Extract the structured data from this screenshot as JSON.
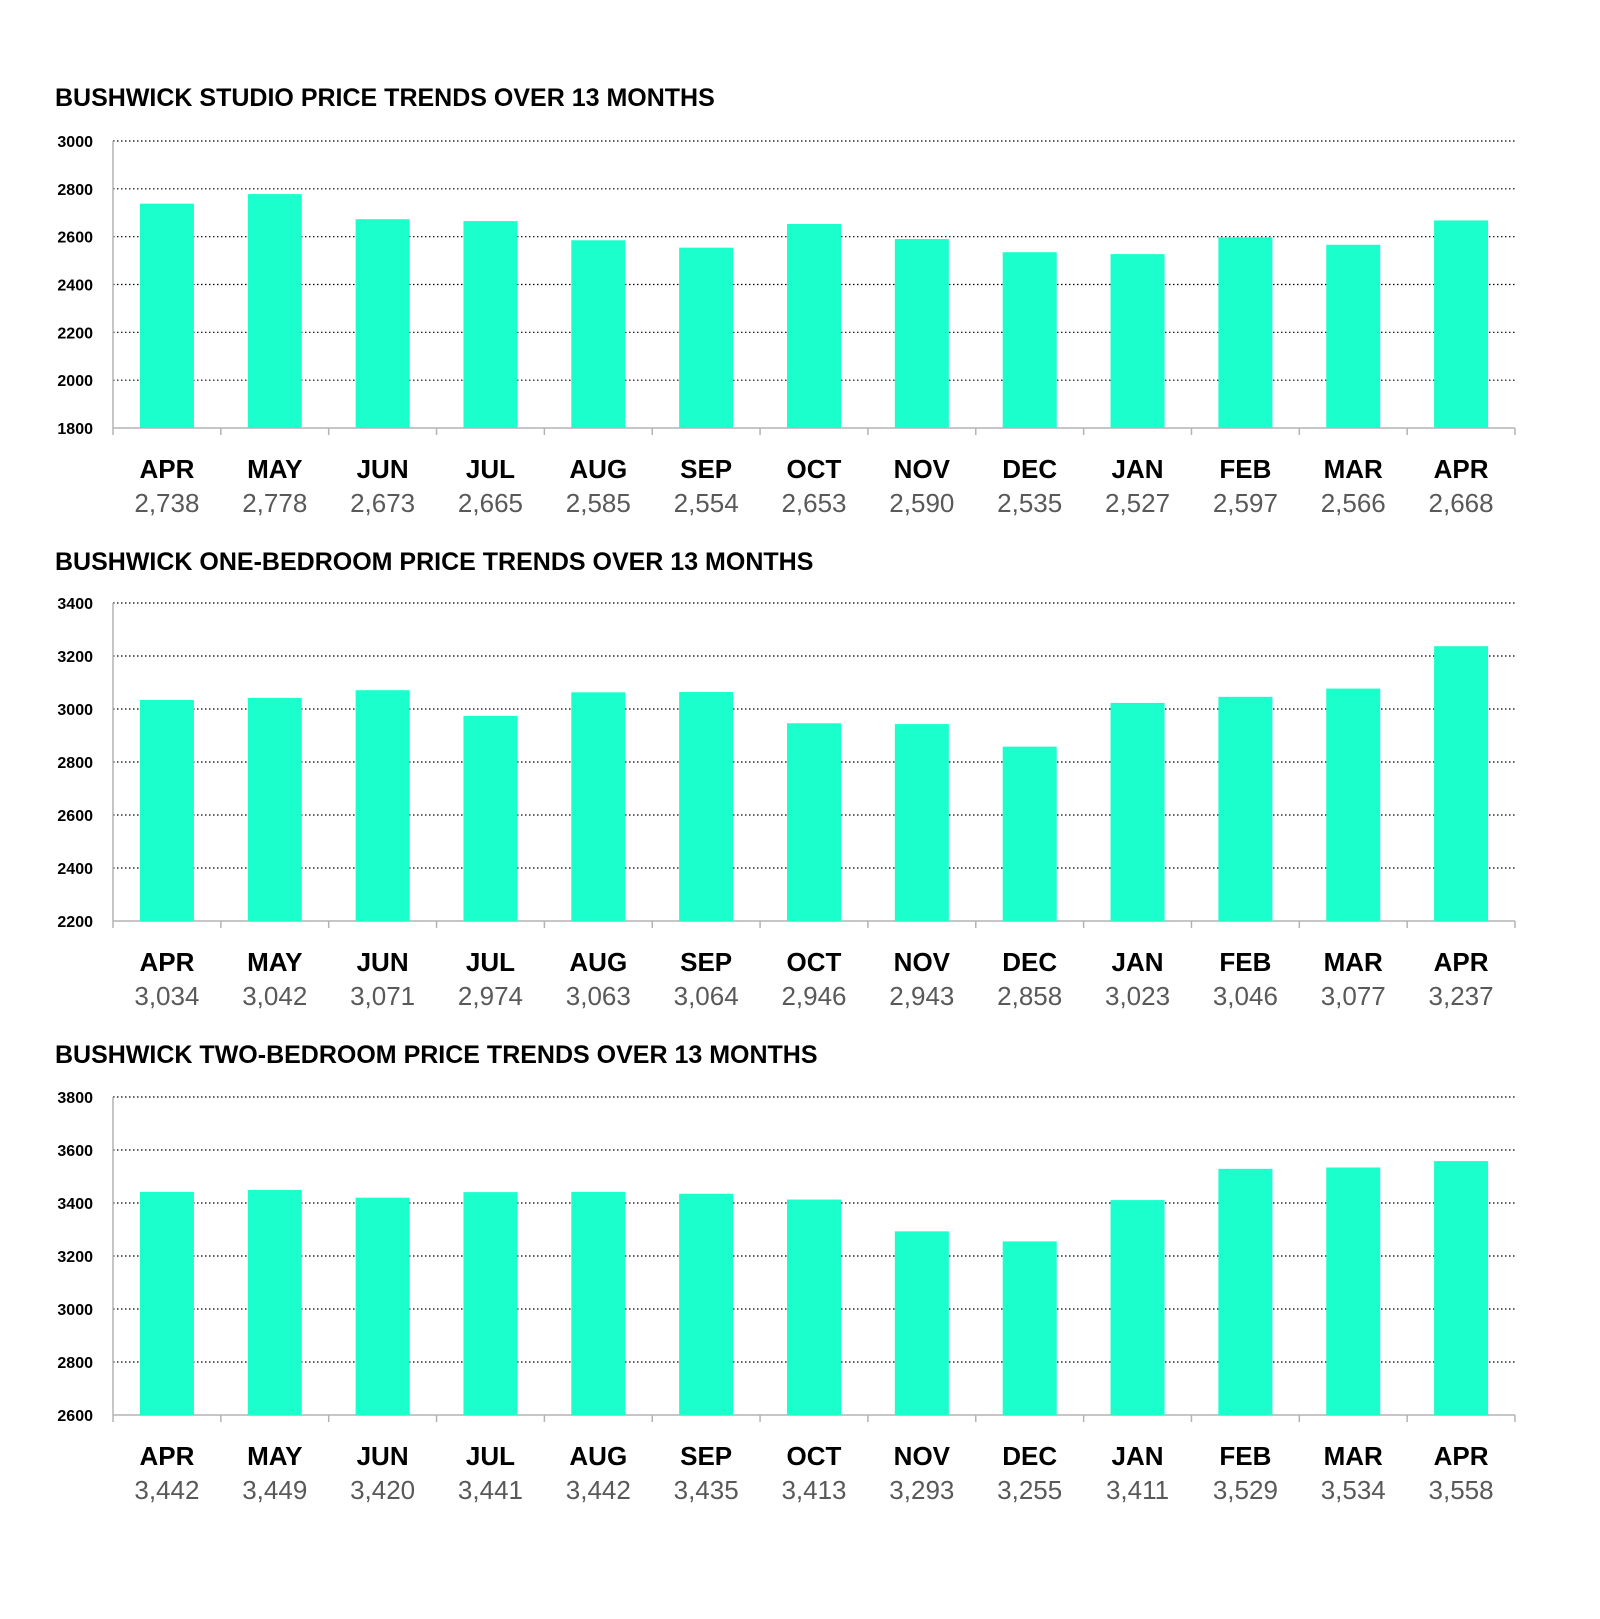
{
  "colors": {
    "bar": "#1affcc",
    "grid": "#000000",
    "axis": "#b3b3b3",
    "value_text": "#595959",
    "label_text": "#000000"
  },
  "chart_data": [
    {
      "type": "bar",
      "title": "BUSHWICK STUDIO PRICE TRENDS OVER 13 MONTHS",
      "categories": [
        "APR",
        "MAY",
        "JUN",
        "JUL",
        "AUG",
        "SEP",
        "OCT",
        "NOV",
        "DEC",
        "JAN",
        "FEB",
        "MAR",
        "APR"
      ],
      "values": [
        2738,
        2778,
        2673,
        2665,
        2585,
        2554,
        2653,
        2590,
        2535,
        2527,
        2597,
        2566,
        2668
      ],
      "value_labels": [
        "2,738",
        "2,778",
        "2,673",
        "2,665",
        "2,585",
        "2,554",
        "2,653",
        "2,590",
        "2,535",
        "2,527",
        "2,597",
        "2,566",
        "2,668"
      ],
      "ylim": [
        1800,
        3000
      ],
      "yticks": [
        1800,
        2000,
        2200,
        2400,
        2600,
        2800,
        3000
      ],
      "xlabel": "",
      "ylabel": "",
      "grid": "horizontal-dotted",
      "legend": "none"
    },
    {
      "type": "bar",
      "title": "BUSHWICK ONE-BEDROOM PRICE TRENDS OVER 13 MONTHS",
      "categories": [
        "APR",
        "MAY",
        "JUN",
        "JUL",
        "AUG",
        "SEP",
        "OCT",
        "NOV",
        "DEC",
        "JAN",
        "FEB",
        "MAR",
        "APR"
      ],
      "values": [
        3034,
        3042,
        3071,
        2974,
        3063,
        3064,
        2946,
        2943,
        2858,
        3023,
        3046,
        3077,
        3237
      ],
      "value_labels": [
        "3,034",
        "3,042",
        "3,071",
        "2,974",
        "3,063",
        "3,064",
        "2,946",
        "2,943",
        "2,858",
        "3,023",
        "3,046",
        "3,077",
        "3,237"
      ],
      "ylim": [
        2200,
        3400
      ],
      "yticks": [
        2200,
        2400,
        2600,
        2800,
        3000,
        3200,
        3400
      ],
      "xlabel": "",
      "ylabel": "",
      "grid": "horizontal-dotted",
      "legend": "none"
    },
    {
      "type": "bar",
      "title": "BUSHWICK TWO-BEDROOM PRICE TRENDS OVER 13 MONTHS",
      "categories": [
        "APR",
        "MAY",
        "JUN",
        "JUL",
        "AUG",
        "SEP",
        "OCT",
        "NOV",
        "DEC",
        "JAN",
        "FEB",
        "MAR",
        "APR"
      ],
      "values": [
        3442,
        3449,
        3420,
        3441,
        3442,
        3435,
        3413,
        3293,
        3255,
        3411,
        3529,
        3534,
        3558
      ],
      "value_labels": [
        "3,442",
        "3,449",
        "3,420",
        "3,441",
        "3,442",
        "3,435",
        "3,413",
        "3,293",
        "3,255",
        "3,411",
        "3,529",
        "3,534",
        "3,558"
      ],
      "ylim": [
        2600,
        3800
      ],
      "yticks": [
        2600,
        2800,
        3000,
        3200,
        3400,
        3600,
        3800
      ],
      "xlabel": "",
      "ylabel": "",
      "grid": "horizontal-dotted",
      "legend": "none"
    }
  ]
}
